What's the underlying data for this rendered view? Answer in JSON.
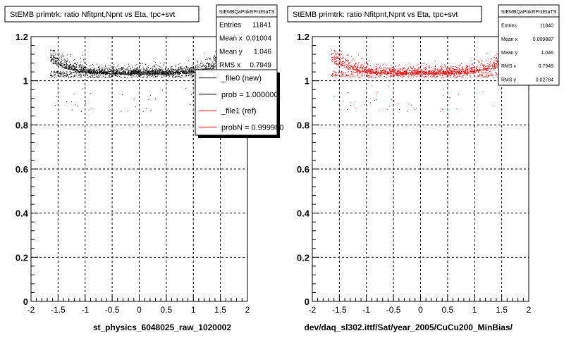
{
  "chart_data": [
    {
      "type": "scatter",
      "title": "StEMB primtrk: ratio Nfitpnt,Npnt vs Eta, tpc+svt",
      "xlabel": "st_physics_6048025_raw_1020002",
      "ylabel": "",
      "xlim": [
        -2,
        2
      ],
      "ylim": [
        0,
        1.2
      ],
      "x_ticks": [
        "-2",
        "-1.5",
        "-1",
        "-0.5",
        "0",
        "0.5",
        "1",
        "1.5",
        "2"
      ],
      "y_ticks": [
        "0",
        "0.2",
        "0.4",
        "0.6",
        "0.8",
        "1",
        "1.2"
      ],
      "grid": true,
      "marker_color": "#000000",
      "band": {
        "x_range": [
          -1.65,
          1.65
        ],
        "y_center": 1.046,
        "y_min": 1.0,
        "y_max": 1.14
      },
      "stats_box": {
        "name": "StEMBQaPtrkRPntEtaTS",
        "rows": [
          {
            "label": "Entries",
            "value": "11841"
          },
          {
            "label": "Mean x",
            "value": "0.01004"
          },
          {
            "label": "Mean y",
            "value": "1.046"
          },
          {
            "label": "RMS x",
            "value": "0.7949"
          }
        ]
      },
      "legend": {
        "placement": "top-right",
        "entries": [
          {
            "label": "_file0 (new)",
            "color": "#000000"
          },
          {
            "label": "prob = 1.000000",
            "color": "#000000"
          },
          {
            "label": "_file1 (ref)",
            "color": "#ff0000"
          },
          {
            "label": "probN = 0.999980",
            "color": "#ff0000"
          }
        ]
      }
    },
    {
      "type": "scatter",
      "title": "StEMB primtrk: ratio Nfitpnt,Npnt vs Eta, tpc+svt",
      "xlabel": "dev/daq_sl302.ittf/Sat/year_2005/CuCu200_MinBias/",
      "ylabel": "",
      "xlim": [
        -2,
        2
      ],
      "ylim": [
        0,
        1.2
      ],
      "x_ticks": [
        "-2",
        "-1.5",
        "-1",
        "-0.5",
        "0",
        "0.5",
        "1",
        "1.5",
        "2"
      ],
      "y_ticks": [
        "0",
        "0.2",
        "0.4",
        "0.6",
        "0.8",
        "1",
        "1.2"
      ],
      "grid": true,
      "marker_color": "#ff0000",
      "band": {
        "x_range": [
          -1.65,
          1.65
        ],
        "y_center": 1.046,
        "y_min": 1.0,
        "y_max": 1.14
      },
      "stats_box": {
        "name": "StEMBQaPtrkRPntEtaTS",
        "rows": [
          {
            "label": "Entries",
            "value": "11840"
          },
          {
            "label": "Mean x",
            "value": "0.009887"
          },
          {
            "label": "Mean y",
            "value": "1.046"
          },
          {
            "label": "RMS x",
            "value": "0.7949"
          },
          {
            "label": "RMS y",
            "value": "0.02784"
          }
        ]
      }
    }
  ]
}
